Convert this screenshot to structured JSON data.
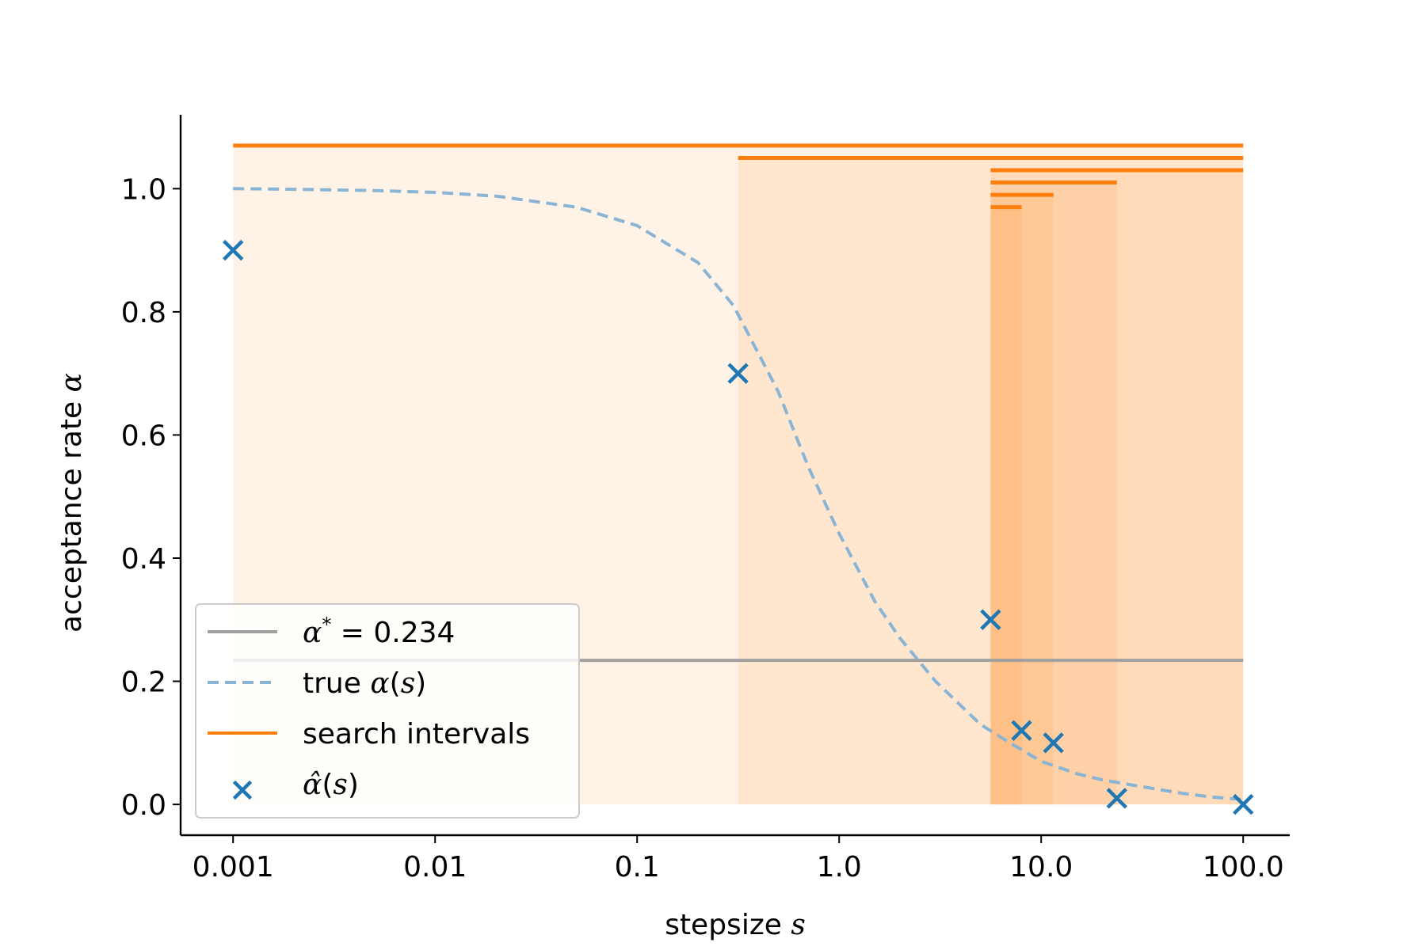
{
  "chart_data": {
    "type": "line",
    "xlabel": "stepsize",
    "xlabel_var": "s",
    "ylabel": "acceptance rate",
    "ylabel_var": "α",
    "x_scale": "log",
    "xlim": [
      0.00055,
      170
    ],
    "ylim": [
      -0.05,
      1.12
    ],
    "x_ticks": [
      0.001,
      0.01,
      0.1,
      1.0,
      10.0,
      100.0
    ],
    "x_tick_labels": [
      "0.001",
      "0.01",
      "0.1",
      "1.0",
      "10.0",
      "100.0"
    ],
    "y_ticks": [
      0.0,
      0.2,
      0.4,
      0.6,
      0.8,
      1.0
    ],
    "y_tick_labels": [
      "0.0",
      "0.2",
      "0.4",
      "0.6",
      "0.8",
      "1.0"
    ],
    "grid": false,
    "legend_position": "lower-left",
    "colors": {
      "target": "#a0a0a0",
      "true_curve": "#8ab4d4",
      "intervals": "#ff7f0e",
      "estimates": "#1f77b4"
    },
    "series": [
      {
        "name": "α* = 0.234",
        "legend_parts": [
          "α",
          "*",
          " = 0.234"
        ],
        "kind": "hline",
        "y": 0.234,
        "x_range": [
          0.001,
          100
        ]
      },
      {
        "name": "true α(s)",
        "legend_parts": [
          "true ",
          "α",
          "(",
          "s",
          ")"
        ],
        "kind": "dashed-line",
        "x": [
          0.001,
          0.002,
          0.005,
          0.01,
          0.02,
          0.05,
          0.1,
          0.2,
          0.3,
          0.5,
          0.7,
          1.0,
          1.5,
          2.0,
          3.0,
          5.0,
          7.0,
          10.0,
          15.0,
          20.0,
          30.0,
          50.0,
          70.0,
          100.0
        ],
        "y": [
          1.0,
          0.999,
          0.997,
          0.994,
          0.988,
          0.97,
          0.94,
          0.88,
          0.81,
          0.67,
          0.55,
          0.44,
          0.33,
          0.27,
          0.2,
          0.13,
          0.1,
          0.07,
          0.05,
          0.04,
          0.03,
          0.018,
          0.012,
          0.008
        ]
      },
      {
        "name": "search intervals",
        "legend_parts": [
          "search intervals"
        ],
        "kind": "intervals",
        "intervals": [
          {
            "lo": 0.001,
            "hi": 100,
            "y": 1.07
          },
          {
            "lo": 0.316,
            "hi": 100,
            "y": 1.05
          },
          {
            "lo": 5.62,
            "hi": 100,
            "y": 1.03
          },
          {
            "lo": 5.62,
            "hi": 23.7,
            "y": 1.01
          },
          {
            "lo": 5.62,
            "hi": 11.5,
            "y": 0.99
          },
          {
            "lo": 5.62,
            "hi": 8.0,
            "y": 0.97
          }
        ]
      },
      {
        "name": "α̂(s)",
        "legend_parts": [
          "α̂",
          "(",
          "s",
          ")"
        ],
        "kind": "scatter",
        "x": [
          0.001,
          0.316,
          5.62,
          8.0,
          11.5,
          23.7,
          100
        ],
        "y": [
          0.9,
          0.7,
          0.3,
          0.12,
          0.1,
          0.01,
          0.0
        ]
      }
    ]
  }
}
